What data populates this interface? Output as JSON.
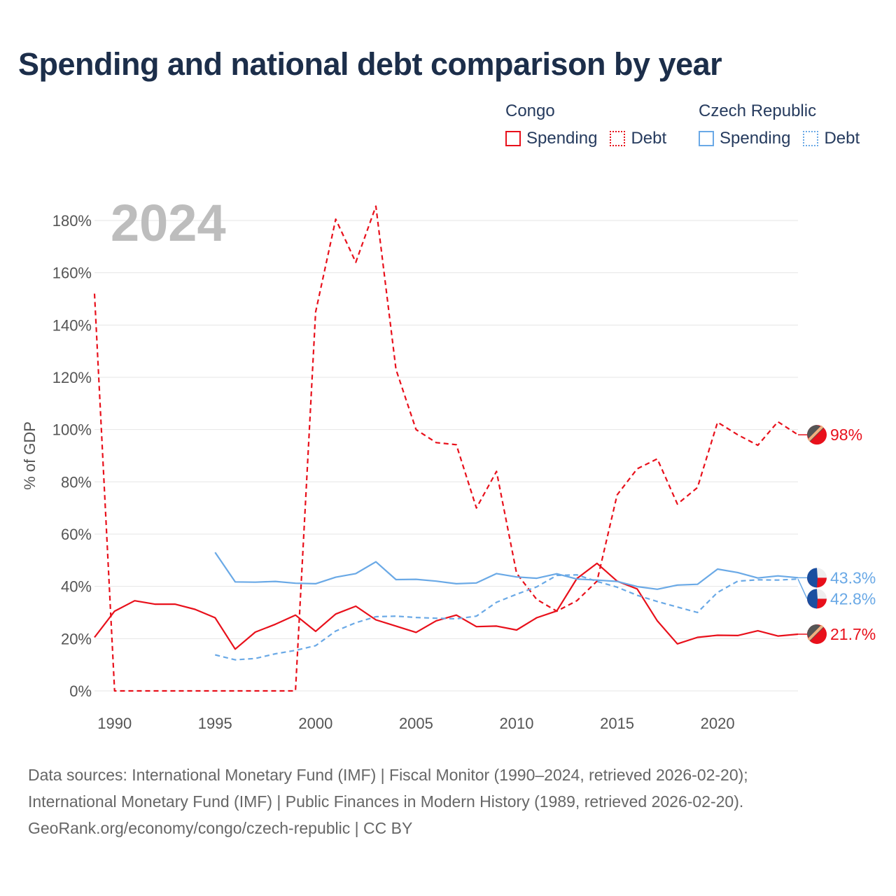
{
  "title": "Spending and national debt comparison by year",
  "legend": {
    "groups": [
      {
        "name": "Congo",
        "items": [
          {
            "label": "Spending",
            "color": "#e8101b",
            "style": "solid"
          },
          {
            "label": "Debt",
            "color": "#e8101b",
            "style": "dotted"
          }
        ]
      },
      {
        "name": "Czech Republic",
        "items": [
          {
            "label": "Spending",
            "color": "#6aa9e6",
            "style": "solid"
          },
          {
            "label": "Debt",
            "color": "#6aa9e6",
            "style": "dotted"
          }
        ]
      }
    ]
  },
  "sources": [
    "Data sources: International Monetary Fund (IMF) | Fiscal Monitor (1990–2024, retrieved 2026-02-20);",
    "International Monetary Fund (IMF) | Public Finances in Modern History (1989, retrieved 2026-02-20).",
    "GeoRank.org/economy/congo/czech-republic | CC BY"
  ],
  "chart_data": {
    "type": "line",
    "year_label": "2024",
    "ylabel": "% of GDP",
    "xlabel": "",
    "xlim": [
      1989,
      2024
    ],
    "ylim": [
      0,
      180
    ],
    "grid": true,
    "y_ticks": [
      0,
      20,
      40,
      60,
      80,
      100,
      120,
      140,
      160,
      180
    ],
    "y_tick_labels": [
      "0%",
      "20%",
      "40%",
      "60%",
      "80%",
      "100%",
      "120%",
      "140%",
      "160%",
      "180%"
    ],
    "x_ticks": [
      1990,
      1995,
      2000,
      2005,
      2010,
      2015,
      2020
    ],
    "x_tick_labels": [
      "1990",
      "1995",
      "2000",
      "2005",
      "2010",
      "2015",
      "2020"
    ],
    "series": [
      {
        "name": "Congo Spending",
        "country": "Congo",
        "metric": "Spending",
        "color": "#e8101b",
        "dashed": false,
        "end_label": "21.7%",
        "x": [
          1989,
          1990,
          1991,
          1992,
          1993,
          1994,
          1995,
          1996,
          1997,
          1998,
          1999,
          2000,
          2001,
          2002,
          2003,
          2004,
          2005,
          2006,
          2007,
          2008,
          2009,
          2010,
          2011,
          2012,
          2013,
          2014,
          2015,
          2016,
          2017,
          2018,
          2019,
          2020,
          2021,
          2022,
          2023,
          2024
        ],
        "values": [
          20.5,
          30.5,
          34.5,
          33.2,
          33.2,
          31.2,
          28.0,
          16.0,
          22.5,
          25.5,
          29.0,
          22.8,
          29.4,
          32.4,
          27.2,
          24.8,
          22.4,
          26.8,
          29.0,
          24.6,
          24.8,
          23.3,
          28.0,
          30.6,
          43.0,
          48.8,
          42.0,
          39.0,
          26.8,
          18.0,
          20.5,
          21.3,
          21.2,
          23.0,
          21.0,
          21.7
        ]
      },
      {
        "name": "Congo Debt",
        "country": "Congo",
        "metric": "Debt",
        "color": "#e8101b",
        "dashed": true,
        "end_label": "98%",
        "x": [
          1989,
          1990,
          1991,
          1992,
          1993,
          1994,
          1995,
          1996,
          1997,
          1998,
          1999,
          2000,
          2001,
          2002,
          2003,
          2004,
          2005,
          2006,
          2007,
          2008,
          2009,
          2010,
          2011,
          2012,
          2013,
          2014,
          2015,
          2016,
          2017,
          2018,
          2019,
          2020,
          2021,
          2022,
          2023,
          2024
        ],
        "values": [
          152.0,
          0,
          0,
          0,
          0,
          0,
          0,
          0,
          0,
          0,
          0,
          145.0,
          180.5,
          164.0,
          185.5,
          123.0,
          100.0,
          95.0,
          94.2,
          70.0,
          84.0,
          45.0,
          35.0,
          30.5,
          34.5,
          42.0,
          75.0,
          85.0,
          88.8,
          71.5,
          77.8,
          102.8,
          98.0,
          94.0,
          103.0,
          98.0
        ]
      },
      {
        "name": "Czech Republic Spending",
        "country": "Czech Republic",
        "metric": "Spending",
        "color": "#6aa9e6",
        "dashed": false,
        "end_label": "43.3%",
        "x": [
          1995,
          1996,
          1997,
          1998,
          1999,
          2000,
          2001,
          2002,
          2003,
          2004,
          2005,
          2006,
          2007,
          2008,
          2009,
          2010,
          2011,
          2012,
          2013,
          2014,
          2015,
          2016,
          2017,
          2018,
          2019,
          2020,
          2021,
          2022,
          2023,
          2024
        ],
        "values": [
          53.0,
          41.7,
          41.6,
          41.9,
          41.2,
          41.0,
          43.5,
          44.9,
          49.4,
          42.6,
          42.7,
          42.0,
          41.0,
          41.3,
          44.9,
          43.6,
          43.1,
          44.8,
          42.8,
          42.4,
          41.9,
          39.9,
          38.9,
          40.5,
          40.8,
          46.6,
          45.3,
          43.2,
          44.0,
          43.3
        ]
      },
      {
        "name": "Czech Republic Debt",
        "country": "Czech Republic",
        "metric": "Debt",
        "color": "#6aa9e6",
        "dashed": true,
        "end_label": "42.8%",
        "x": [
          1995,
          1996,
          1997,
          1998,
          1999,
          2000,
          2001,
          2002,
          2003,
          2004,
          2005,
          2006,
          2007,
          2008,
          2009,
          2010,
          2011,
          2012,
          2013,
          2014,
          2015,
          2016,
          2017,
          2018,
          2019,
          2020,
          2021,
          2022,
          2023,
          2024
        ],
        "values": [
          13.8,
          11.9,
          12.4,
          14.2,
          15.5,
          17.3,
          22.9,
          26.1,
          28.4,
          28.6,
          28.1,
          27.8,
          27.6,
          28.6,
          33.9,
          37.0,
          39.8,
          44.2,
          44.4,
          41.9,
          39.7,
          36.6,
          34.2,
          32.1,
          30.0,
          37.7,
          42.0,
          42.5,
          42.4,
          42.8
        ]
      }
    ]
  }
}
